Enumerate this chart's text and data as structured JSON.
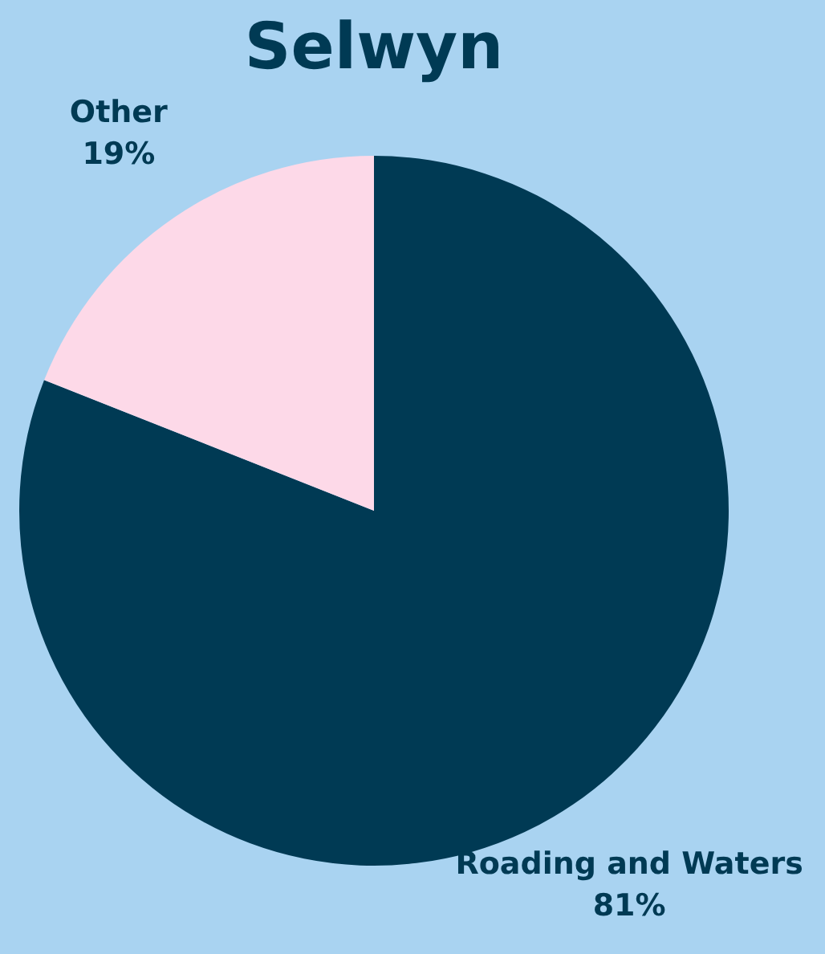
{
  "chart_data": {
    "type": "pie",
    "title": "Selwyn",
    "categories": [
      "Roading and Waters",
      "Other"
    ],
    "values": [
      81,
      19
    ],
    "colors": [
      "#003a54",
      "#fdd9e8"
    ],
    "value_labels": [
      "81%",
      "19%"
    ]
  }
}
